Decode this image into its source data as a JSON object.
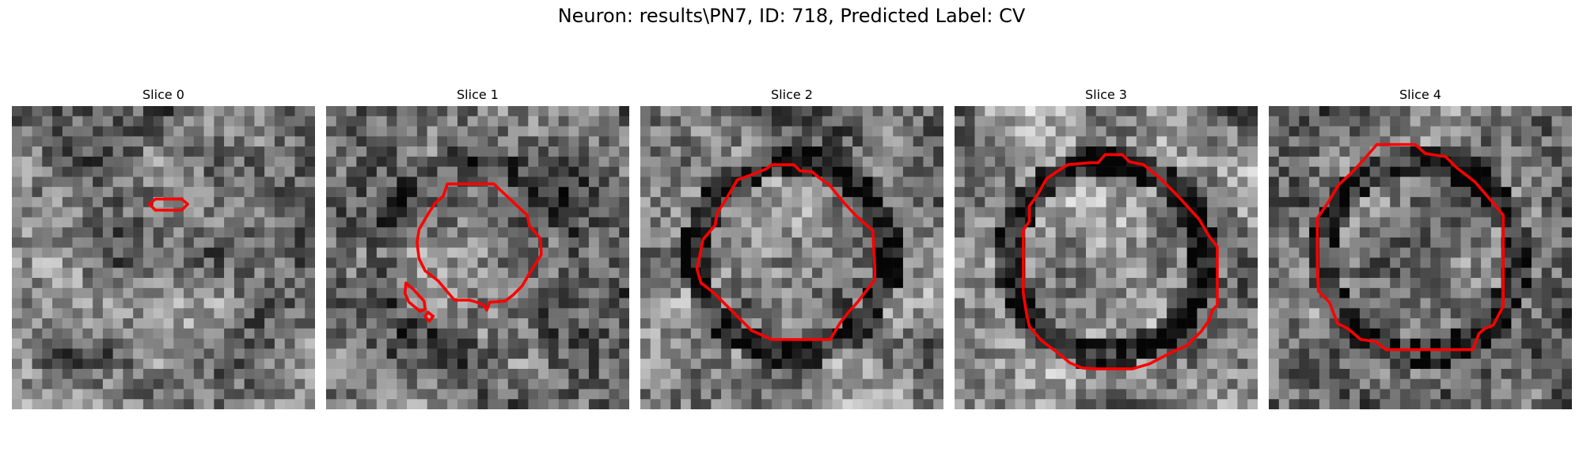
{
  "figure": {
    "title": "Neuron: results\\PN7, ID: 718, Predicted Label: CV",
    "panels": [
      {
        "title": "Slice 0",
        "seed": 11,
        "bright": 0.55,
        "ring_dark": 0.0
      },
      {
        "title": "Slice 1",
        "seed": 23,
        "bright": 0.5,
        "ring_dark": 0.15
      },
      {
        "title": "Slice 2",
        "seed": 37,
        "bright": 0.62,
        "ring_dark": 0.35
      },
      {
        "title": "Slice 3",
        "seed": 41,
        "bright": 0.62,
        "ring_dark": 0.45
      },
      {
        "title": "Slice 4",
        "seed": 53,
        "bright": 0.6,
        "ring_dark": 0.35
      }
    ]
  },
  "colors": {
    "contour": "#ff0000",
    "background": "#ffffff"
  }
}
